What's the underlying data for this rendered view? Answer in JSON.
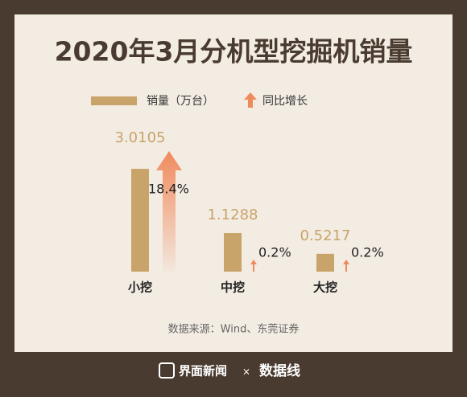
{
  "chart_data": {
    "type": "bar",
    "title": "2020年3月分机型挖掘机销量",
    "categories": [
      "小挖",
      "中挖",
      "大挖"
    ],
    "series": [
      {
        "name": "销量（万台）",
        "color": "#c9a46a",
        "values": [
          3.0105,
          1.1288,
          0.5217
        ]
      },
      {
        "name": "同比增长",
        "color": "#f08a5d",
        "values": [
          18.4,
          0.2,
          0.2
        ],
        "value_labels": [
          "18.4%",
          "0.2%",
          "0.2%"
        ]
      }
    ],
    "source": "数据来源：Wind、东莞证券",
    "footer": {
      "brand": "界面新闻",
      "separator": "×",
      "logo": "数据线"
    }
  }
}
